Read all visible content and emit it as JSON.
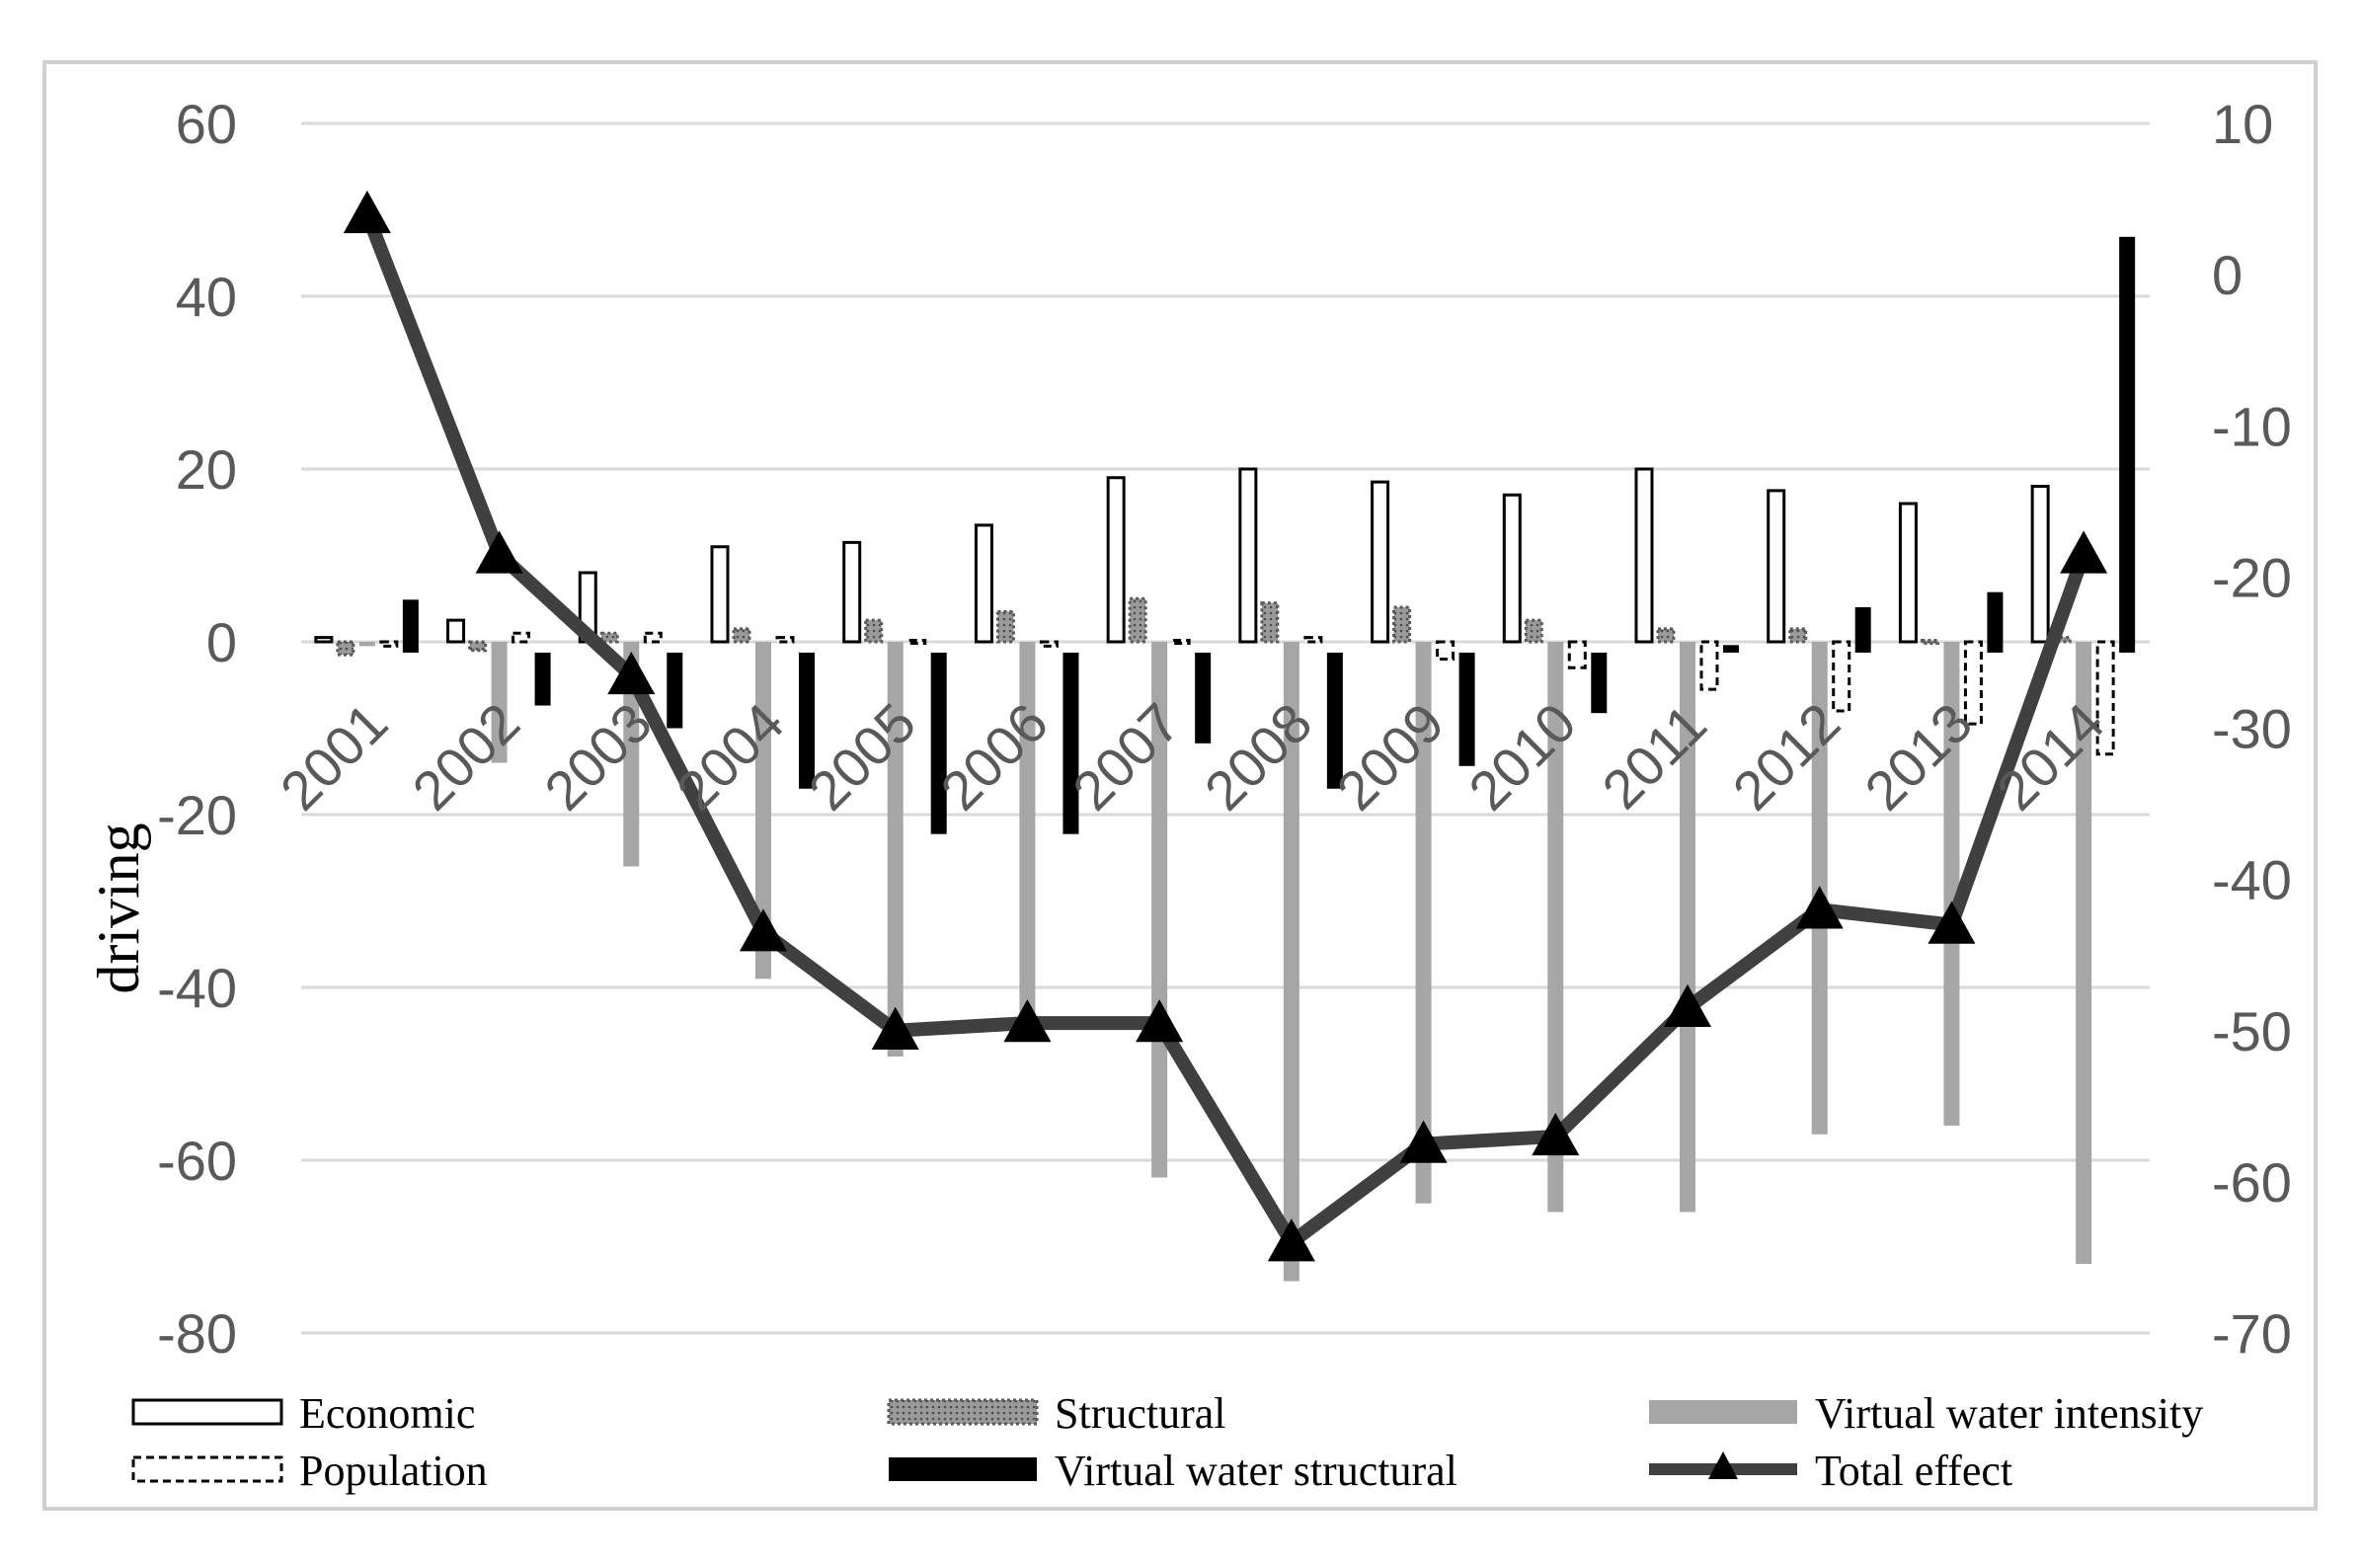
{
  "chart_data": {
    "type": "bar",
    "categories": [
      "2001",
      "2002",
      "2003",
      "2004",
      "2005",
      "2006",
      "2007",
      "2008",
      "2009",
      "2010",
      "2011",
      "2012",
      "2013",
      "2014"
    ],
    "ylabel": "driving",
    "ylim": [
      -80,
      60
    ],
    "y_ticks": [
      60,
      40,
      20,
      0,
      -20,
      -40,
      -60,
      -80
    ],
    "y2lim": [
      -70,
      10
    ],
    "y2_ticks": [
      10,
      0,
      -10,
      -20,
      -30,
      -40,
      -50,
      -60,
      -70
    ],
    "grid": true,
    "legend_position": "bottom",
    "series": [
      {
        "name": "Economic",
        "axis": "left",
        "style": "white-outline",
        "values": [
          0.5,
          2.5,
          8,
          11,
          11.5,
          13.5,
          19,
          20,
          18.5,
          17,
          20,
          17.5,
          16,
          18
        ]
      },
      {
        "name": "Structural",
        "axis": "left",
        "style": "dotted-gray",
        "values": [
          -1.5,
          -1,
          1,
          1.5,
          2.5,
          3.5,
          5,
          4.5,
          4,
          2.5,
          1.5,
          1.5,
          0,
          0.5
        ]
      },
      {
        "name": "Virtual water intensity",
        "axis": "left",
        "style": "solid-lightgray",
        "values": [
          -0.5,
          -14,
          -26,
          -39,
          -48,
          -44,
          -62,
          -74,
          -65,
          -66,
          -66,
          -57,
          -56,
          -72
        ]
      },
      {
        "name": "Population",
        "axis": "left",
        "style": "dashed-white",
        "values": [
          -0.5,
          1,
          1,
          0.5,
          0,
          -0.5,
          0,
          0.5,
          -2,
          -3,
          -5.5,
          -8,
          -9.5,
          -13
        ]
      },
      {
        "name": "Virtual water structural",
        "axis": "right",
        "style": "solid-black",
        "values": [
          -21.5,
          -28.5,
          -30,
          -34,
          -37,
          -37,
          -31,
          -34,
          -32.5,
          -29,
          -24.5,
          -22,
          -21,
          2.5
        ]
      },
      {
        "name": "Total effect",
        "axis": "right",
        "type": "line",
        "marker": "triangle",
        "values": [
          4,
          -18.5,
          -26.5,
          -43.5,
          -50,
          -49.5,
          -49.5,
          -64,
          -57.5,
          -57,
          -48.5,
          -42,
          -43,
          -18.5
        ]
      }
    ]
  }
}
